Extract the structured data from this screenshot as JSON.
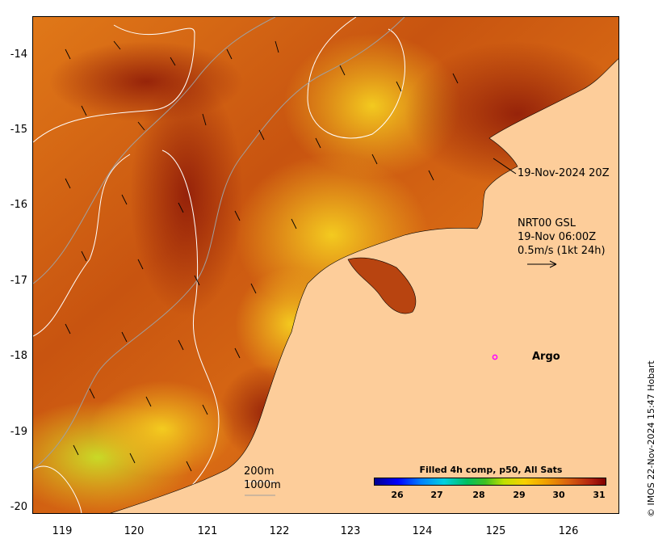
{
  "map": {
    "y_ticks": [
      "-14",
      "-15",
      "-16",
      "-17",
      "-18",
      "-19",
      "-20"
    ],
    "x_ticks": [
      "119",
      "120",
      "121",
      "122",
      "123",
      "124",
      "125",
      "126"
    ],
    "lat_range": [
      -20.05,
      -13.45
    ],
    "lon_range": [
      118.6,
      126.7
    ],
    "timestamp_label": "19-Nov-2024 20Z",
    "current_source": "NRT00 GSL",
    "current_time": "19-Nov 06:00Z",
    "current_scale": "0.5m/s (1kt 24h)",
    "argo_label": "Argo",
    "argo_position": {
      "lon": 125.3,
      "lat": -18.0
    },
    "contour_legend": [
      "200m",
      "1000m"
    ],
    "colors": {
      "land": "#fdcd9a",
      "argo_marker": "#ff00ff",
      "contour_200": "#ffffff",
      "contour_1000": "#a0a0a0"
    }
  },
  "colorbar": {
    "title": "Filled 4h comp, p50, All Sats",
    "ticks": [
      "26",
      "27",
      "28",
      "29",
      "30",
      "31"
    ],
    "range": [
      25.5,
      31.3
    ]
  },
  "credit": "© IMOS 22-Nov-2024 15:47 Hobart"
}
